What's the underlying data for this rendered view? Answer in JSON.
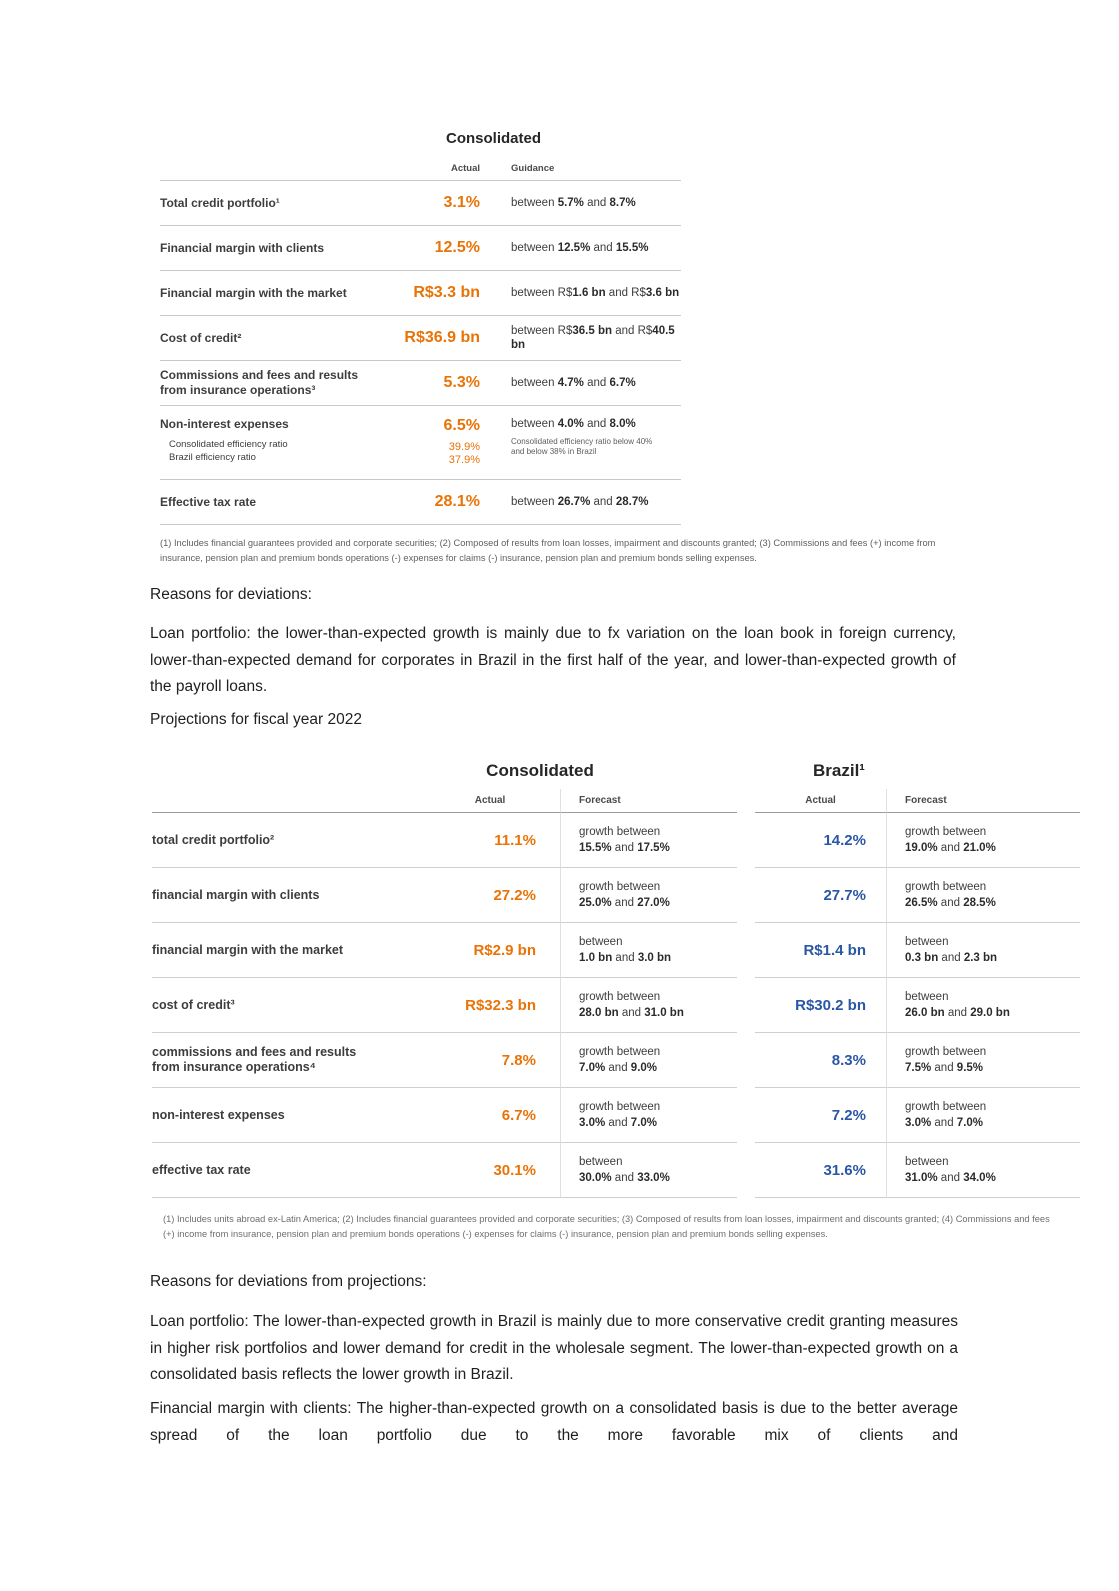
{
  "colors": {
    "accent_orange": "#E97306",
    "accent_blue": "#2A57A5"
  },
  "table1": {
    "title": "Consolidated",
    "headers": {
      "actual": "Actual",
      "guidance": "Guidance"
    },
    "rows": [
      {
        "label": "Total credit portfolio¹",
        "actual": "3.1%",
        "guidance": "between **5.7%** and **8.7%**"
      },
      {
        "label": "Financial margin with clients",
        "actual": "12.5%",
        "guidance": "between **12.5%** and **15.5%**"
      },
      {
        "label": "Financial margin with the market",
        "actual": "R$3.3 bn",
        "guidance": "between R$**1.6 bn** and R$**3.6 bn**"
      },
      {
        "label": "Cost of credit²",
        "actual": "R$36.9 bn",
        "guidance": "between R$**36.5 bn** and R$**40.5 bn**"
      },
      {
        "label": "Commissions and fees and results from insurance operations³",
        "actual": "5.3%",
        "guidance": "between **4.7%** and **6.7%**"
      },
      {
        "label": "Non-interest expenses",
        "sub_label_1": "Consolidated efficiency ratio",
        "sub_label_2": "Brazil efficiency ratio",
        "actual": "6.5%",
        "sub_value_1": "39.9%",
        "sub_value_2": "37.9%",
        "guidance": "between **4.0%** and **8.0%**",
        "guidance_note": "Consolidated efficiency ratio below 40% and below 38% in Brazil"
      },
      {
        "label": "Effective tax rate",
        "actual": "28.1%",
        "guidance": "between **26.7%** and **28.7%**"
      }
    ],
    "footnote": "(1) Includes financial guarantees provided and corporate securities; (2) Composed of results from loan losses, impairment and discounts granted; (3) Commissions and fees (+) income from insurance, pension plan and premium bonds operations (-) expenses for claims (-) insurance, pension plan and premium bonds selling expenses."
  },
  "body": {
    "reasons_heading": "Reasons for deviations:",
    "loan_paragraph": "Loan portfolio: the lower-than-expected growth is mainly due to fx variation on the loan book in foreign currency, lower-than-expected demand for corporates in Brazil in the first half of the year, and lower-than-expected growth of the payroll loans.",
    "projections_heading": "Projections for fiscal year 2022",
    "reasons2_heading": "Reasons for deviations from projections:",
    "deviation_paragraph_1": "Loan portfolio: The lower-than-expected growth in Brazil is mainly due to more conservative credit granting measures in higher risk portfolios and lower demand for credit in the wholesale segment. The lower-than-expected growth on a consolidated basis reflects the lower growth in Brazil.",
    "deviation_paragraph_2": "Financial margin with clients: The higher-than-expected growth on a consolidated basis is due to the better average spread of the loan portfolio due to the more favorable mix of clients and"
  },
  "table2": {
    "group_consolidated": "Consolidated",
    "group_brazil": "Brazil¹",
    "headers": {
      "actual": "Actual",
      "forecast": "Forecast"
    },
    "rows": [
      {
        "label": "total credit portfolio²",
        "c_actual": "11.1%",
        "c_forecast_1": "growth between",
        "c_forecast_2": "**15.5%** and **17.5%**",
        "b_actual": "14.2%",
        "b_forecast_1": "growth between",
        "b_forecast_2": "**19.0%** and **21.0%**"
      },
      {
        "label": "financial margin with clients",
        "c_actual": "27.2%",
        "c_forecast_1": "growth between",
        "c_forecast_2": "**25.0%** and **27.0%**",
        "b_actual": "27.7%",
        "b_forecast_1": "growth between",
        "b_forecast_2": "**26.5%** and **28.5%**"
      },
      {
        "label": "financial margin with the market",
        "c_actual": "R$2.9 bn",
        "c_forecast_1": "between",
        "c_forecast_2": "**1.0 bn** and **3.0 bn**",
        "b_actual": "R$1.4 bn",
        "b_forecast_1": "between",
        "b_forecast_2": "**0.3 bn** and **2.3 bn**"
      },
      {
        "label": "cost of credit³",
        "c_actual": "R$32.3 bn",
        "c_forecast_1": "growth between",
        "c_forecast_2": "**28.0 bn** and **31.0 bn**",
        "b_actual": "R$30.2 bn",
        "b_forecast_1": "between",
        "b_forecast_2": "**26.0 bn** and **29.0 bn**"
      },
      {
        "label": "commissions and fees and results from insurance operations⁴",
        "c_actual": "7.8%",
        "c_forecast_1": "growth between",
        "c_forecast_2": "**7.0%** and **9.0%**",
        "b_actual": "8.3%",
        "b_forecast_1": "growth between",
        "b_forecast_2": "**7.5%** and **9.5%**"
      },
      {
        "label": "non-interest expenses",
        "c_actual": "6.7%",
        "c_forecast_1": "growth between",
        "c_forecast_2": "**3.0%** and **7.0%**",
        "b_actual": "7.2%",
        "b_forecast_1": "growth between",
        "b_forecast_2": "**3.0%** and **7.0%**"
      },
      {
        "label": "effective tax rate",
        "c_actual": "30.1%",
        "c_forecast_1": "between",
        "c_forecast_2": "**30.0%** and **33.0%**",
        "b_actual": "31.6%",
        "b_forecast_1": "between",
        "b_forecast_2": "**31.0%** and **34.0%**"
      }
    ],
    "footnote": "(1) Includes units abroad ex-Latin America; (2) Includes financial guarantees provided and corporate securities; (3) Composed of results from loan losses, impairment and discounts granted; (4) Commissions and fees (+) income from insurance, pension plan and premium bonds operations (-) expenses for claims (-) insurance, pension plan and premium bonds selling expenses."
  }
}
